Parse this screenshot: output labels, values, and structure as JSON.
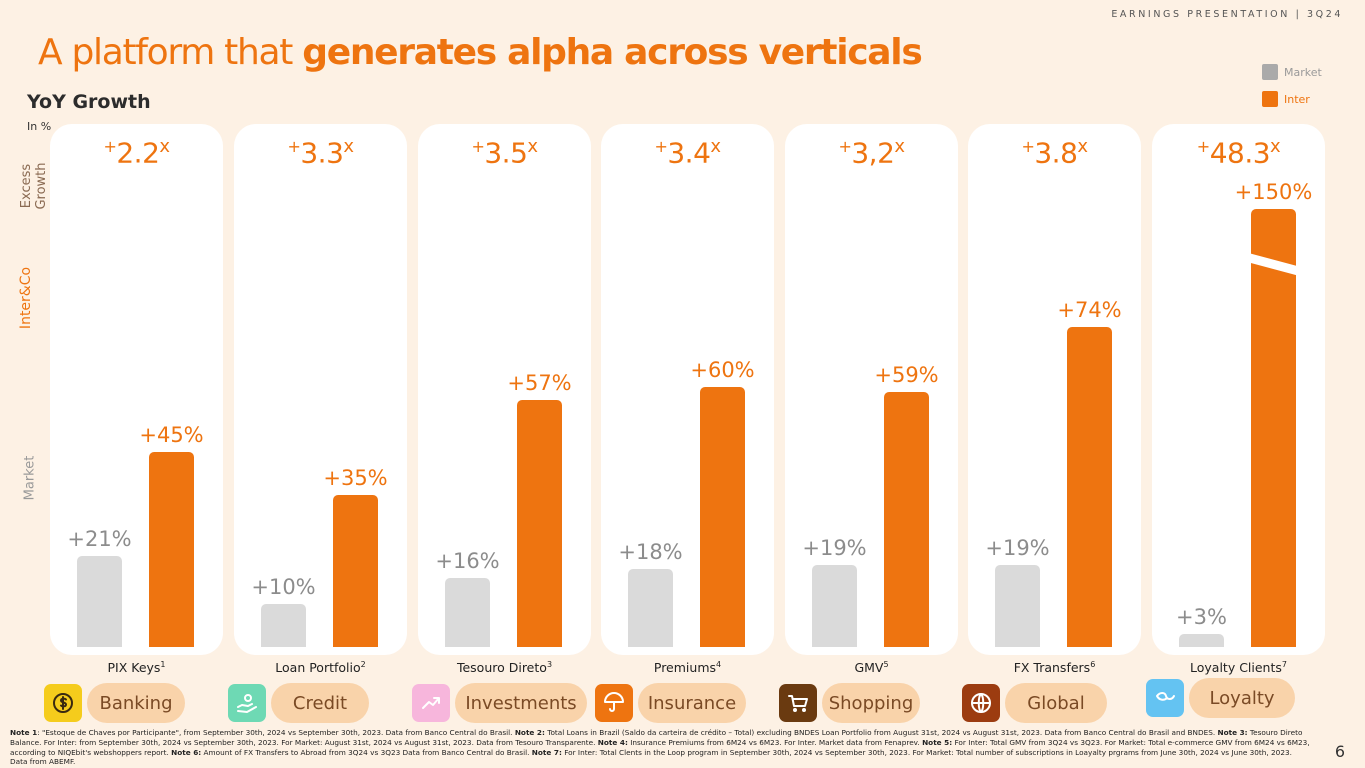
{
  "header": "EARNINGS PRESENTATION | 3Q24",
  "title": {
    "light": "A platform that ",
    "bold": "generates alpha across verticals"
  },
  "subtitle": "YoY Growth",
  "unit": "In %",
  "legend": {
    "market": "Market",
    "inter": "Inter"
  },
  "axis_labels": {
    "excess": "Excess Growth",
    "interco": "Inter&Co",
    "market": "Market"
  },
  "colors": {
    "inter": "#ee7410",
    "market": "#dadada",
    "background": "#fdf1e4"
  },
  "chart_data": {
    "type": "bar",
    "title": "YoY Growth",
    "ylabel": "In %",
    "categories": [
      "PIX Keys",
      "Loan Portfolio",
      "Tesouro Direto",
      "Premiums",
      "GMV",
      "FX Transfers",
      "Loyalty Clients"
    ],
    "footnote_refs": [
      "1",
      "2",
      "3",
      "4",
      "5",
      "6",
      "7"
    ],
    "series": [
      {
        "name": "Market",
        "values": [
          21,
          10,
          16,
          18,
          19,
          19,
          3
        ],
        "labels": [
          "+21%",
          "+10%",
          "+16%",
          "+18%",
          "+19%",
          "+19%",
          "+3%"
        ]
      },
      {
        "name": "Inter",
        "values": [
          45,
          35,
          57,
          60,
          59,
          74,
          150
        ],
        "labels": [
          "+45%",
          "+35%",
          "+57%",
          "+60%",
          "+59%",
          "+74%",
          "+150%"
        ]
      }
    ],
    "multiples": [
      "2.2",
      "3.3",
      "3.5",
      "3.4",
      "3,2",
      "3.8",
      "48.3"
    ],
    "multiple_prefix": "+",
    "multiple_suffix": "x",
    "axis_break_on_category": "Loyalty Clients"
  },
  "verticals": [
    {
      "label": "Banking",
      "icon": "dollar-icon",
      "icon_color": "#f5cc1c"
    },
    {
      "label": "Credit",
      "icon": "hand-coin-icon",
      "icon_color": "#6ed9b4"
    },
    {
      "label": "Investments",
      "icon": "trend-up-icon",
      "icon_color": "#f7b6dc"
    },
    {
      "label": "Insurance",
      "icon": "umbrella-icon",
      "icon_color": "#ee7410"
    },
    {
      "label": "Shopping",
      "icon": "cart-icon",
      "icon_color": "#6a3a10"
    },
    {
      "label": "Global",
      "icon": "globe-icon",
      "icon_color": "#9c3c10"
    },
    {
      "label": "Loyalty",
      "icon": "loop-icon",
      "icon_color": "#64c3f2"
    }
  ],
  "notes": [
    {
      "label": "Note 1",
      "text": ": \"Estoque de Chaves por Participante\", from September 30th, 2024 vs September 30th, 2023. Data from Banco Central do Brasil. "
    },
    {
      "label": "Note 2:",
      "text": " Total Loans in Brazil (Saldo da carteira de crédito – Total) excluding BNDES Loan Portfolio from August 31st, 2024 vs August 31st, 2023. Data from Banco Central do Brasil and BNDES.  "
    },
    {
      "label": "Note 3:",
      "text": " Tesouro Direto Balance. For Inter: from September 30th, 2024 vs September 30th, 2023. For Market: August 31st, 2024 vs August 31st, 2023. Data from Tesouro Transparente. "
    },
    {
      "label": "Note 4:",
      "text": " Insurance Premiums from 6M24 vs 6M23. For Inter. Market data from Fenaprev. "
    },
    {
      "label": "Note 5:",
      "text": " For Inter: Total GMV from 3Q24 vs 3Q23. For Market: Total e-commerce GMV from 6M24 vs 6M23, according to NIQEbit's webshoppers report. "
    },
    {
      "label": "Note 6:",
      "text": " Amount of FX Transfers to Abroad from 3Q24 vs 3Q23 Data from Banco Central do Brasil. "
    },
    {
      "label": "Note 7:",
      "text": " For Inter: Total Clents in the Loop program in September 30th, 2024 vs September 30th, 2023. For Market: Total number of subscriptions in Loayalty prgrams from June 30th, 2024 vs June 30th, 2023. Data from ABEMF."
    }
  ],
  "page_number": "6"
}
